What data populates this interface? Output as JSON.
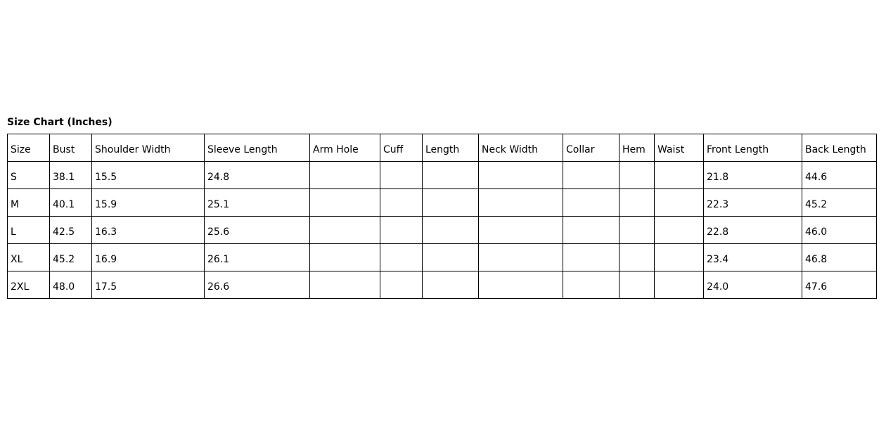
{
  "title": "Size Chart (Inches)",
  "table": {
    "headers": [
      "Size",
      "Bust",
      "Shoulder Width",
      "Sleeve Length",
      "Arm Hole",
      "Cuff",
      "Length",
      "Neck Width",
      "Collar",
      "Hem",
      "Waist",
      "Front Length",
      "Back Length"
    ],
    "rows": [
      [
        "S",
        "38.1",
        "15.5",
        "24.8",
        "",
        "",
        "",
        "",
        "",
        "",
        "",
        "21.8",
        "44.6"
      ],
      [
        "M",
        "40.1",
        "15.9",
        "25.1",
        "",
        "",
        "",
        "",
        "",
        "",
        "",
        "22.3",
        "45.2"
      ],
      [
        "L",
        "42.5",
        "16.3",
        "25.6",
        "",
        "",
        "",
        "",
        "",
        "",
        "",
        "22.8",
        "46.0"
      ],
      [
        "XL",
        "45.2",
        "16.9",
        "26.1",
        "",
        "",
        "",
        "",
        "",
        "",
        "",
        "23.4",
        "46.8"
      ],
      [
        "2XL",
        "48.0",
        "17.5",
        "26.6",
        "",
        "",
        "",
        "",
        "",
        "",
        "",
        "24.0",
        "47.6"
      ]
    ]
  }
}
